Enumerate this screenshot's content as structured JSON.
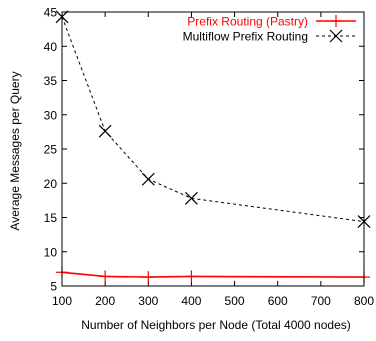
{
  "chart_data": {
    "type": "line",
    "xlabel": "Number of Neighbors per Node (Total 4000 nodes)",
    "ylabel": "Average Messages per Query",
    "xlim": [
      100,
      800
    ],
    "ylim": [
      5,
      45
    ],
    "xticks": [
      100,
      200,
      300,
      400,
      500,
      600,
      700,
      800
    ],
    "yticks": [
      5,
      10,
      15,
      20,
      25,
      30,
      35,
      40,
      45
    ],
    "grid": false,
    "legend_position": "top-right",
    "series": [
      {
        "name": "Prefix Routing (Pastry)",
        "color": "#ff0000",
        "line_style": "solid",
        "marker": "plus",
        "x": [
          100,
          200,
          300,
          400,
          800
        ],
        "y": [
          7.0,
          6.4,
          6.3,
          6.4,
          6.3
        ]
      },
      {
        "name": "Multiflow Prefix Routing",
        "color": "#000000",
        "line_style": "dashed",
        "marker": "x",
        "x": [
          100,
          200,
          300,
          400,
          800
        ],
        "y": [
          44.3,
          27.6,
          20.6,
          17.8,
          14.4
        ]
      }
    ]
  }
}
